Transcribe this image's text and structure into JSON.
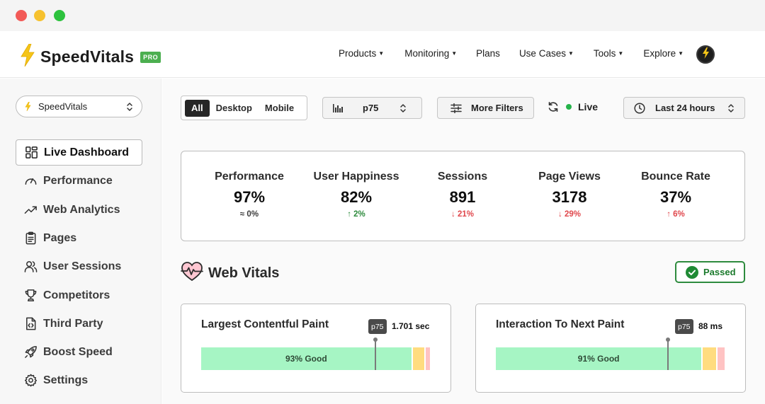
{
  "nav": {
    "brand": "SpeedVitals",
    "badge": "PRO",
    "items": [
      {
        "label": "Products",
        "dropdown": true
      },
      {
        "label": "Monitoring",
        "dropdown": true
      },
      {
        "label": "Plans",
        "dropdown": false
      },
      {
        "label": "Use Cases",
        "dropdown": true
      },
      {
        "label": "Tools",
        "dropdown": true
      },
      {
        "label": "Explore",
        "dropdown": true
      }
    ],
    "avatar_icon": "bolt-icon"
  },
  "sidebar": {
    "site_selector": "SpeedVitals",
    "items": [
      {
        "label": "Live Dashboard",
        "icon": "dashboard-grid-icon",
        "active": true
      },
      {
        "label": "Performance",
        "icon": "gauge-icon",
        "active": false
      },
      {
        "label": "Web Analytics",
        "icon": "trending-up-icon",
        "active": false
      },
      {
        "label": "Pages",
        "icon": "clipboard-icon",
        "active": false
      },
      {
        "label": "User Sessions",
        "icon": "users-icon",
        "active": false
      },
      {
        "label": "Competitors",
        "icon": "trophy-icon",
        "active": false
      },
      {
        "label": "Third Party",
        "icon": "code-file-icon",
        "active": false
      },
      {
        "label": "Boost Speed",
        "icon": "rocket-icon",
        "active": false
      },
      {
        "label": "Settings",
        "icon": "gear-icon",
        "active": false
      }
    ]
  },
  "toolbar": {
    "device_tabs": [
      "All",
      "Desktop",
      "Mobile"
    ],
    "device_selected": "All",
    "percentile": "p75",
    "more_filters": "More Filters",
    "live_label": "Live",
    "time_range": "Last 24 hours"
  },
  "stats": [
    {
      "label": "Performance",
      "value": "97%",
      "change": "≈ 0%",
      "trend": "flat",
      "color": "#3a3a3a"
    },
    {
      "label": "User Happiness",
      "value": "82%",
      "change": "↑ 2%",
      "trend": "up",
      "color": "#2e8b3e"
    },
    {
      "label": "Sessions",
      "value": "891",
      "change": "↓ 21%",
      "trend": "down",
      "color": "#e0474c"
    },
    {
      "label": "Page Views",
      "value": "3178",
      "change": "↓ 29%",
      "trend": "down",
      "color": "#e0474c"
    },
    {
      "label": "Bounce Rate",
      "value": "37%",
      "change": "↑ 6%",
      "trend": "up",
      "color": "#e0474c"
    }
  ],
  "web_vitals": {
    "title": "Web Vitals",
    "status": "Passed",
    "cards": [
      {
        "name": "Largest Contentful Paint",
        "badge": "p75",
        "value": "1.701 sec",
        "good_label": "93% Good",
        "good_pct": 93,
        "ni_pct": 5,
        "poor_pct": 2,
        "marker_pct": 76
      },
      {
        "name": "Interaction To Next Paint",
        "badge": "p75",
        "value": "88 ms",
        "good_label": "91% Good",
        "good_pct": 91,
        "ni_pct": 6,
        "poor_pct": 3,
        "marker_pct": 75
      }
    ]
  },
  "colors": {
    "good": "#a6f5c4",
    "needs_improvement": "#ffdc7f",
    "poor": "#ffc3c3",
    "pass_green": "#2e8b3e",
    "brand_bolt": "#f5c518"
  }
}
